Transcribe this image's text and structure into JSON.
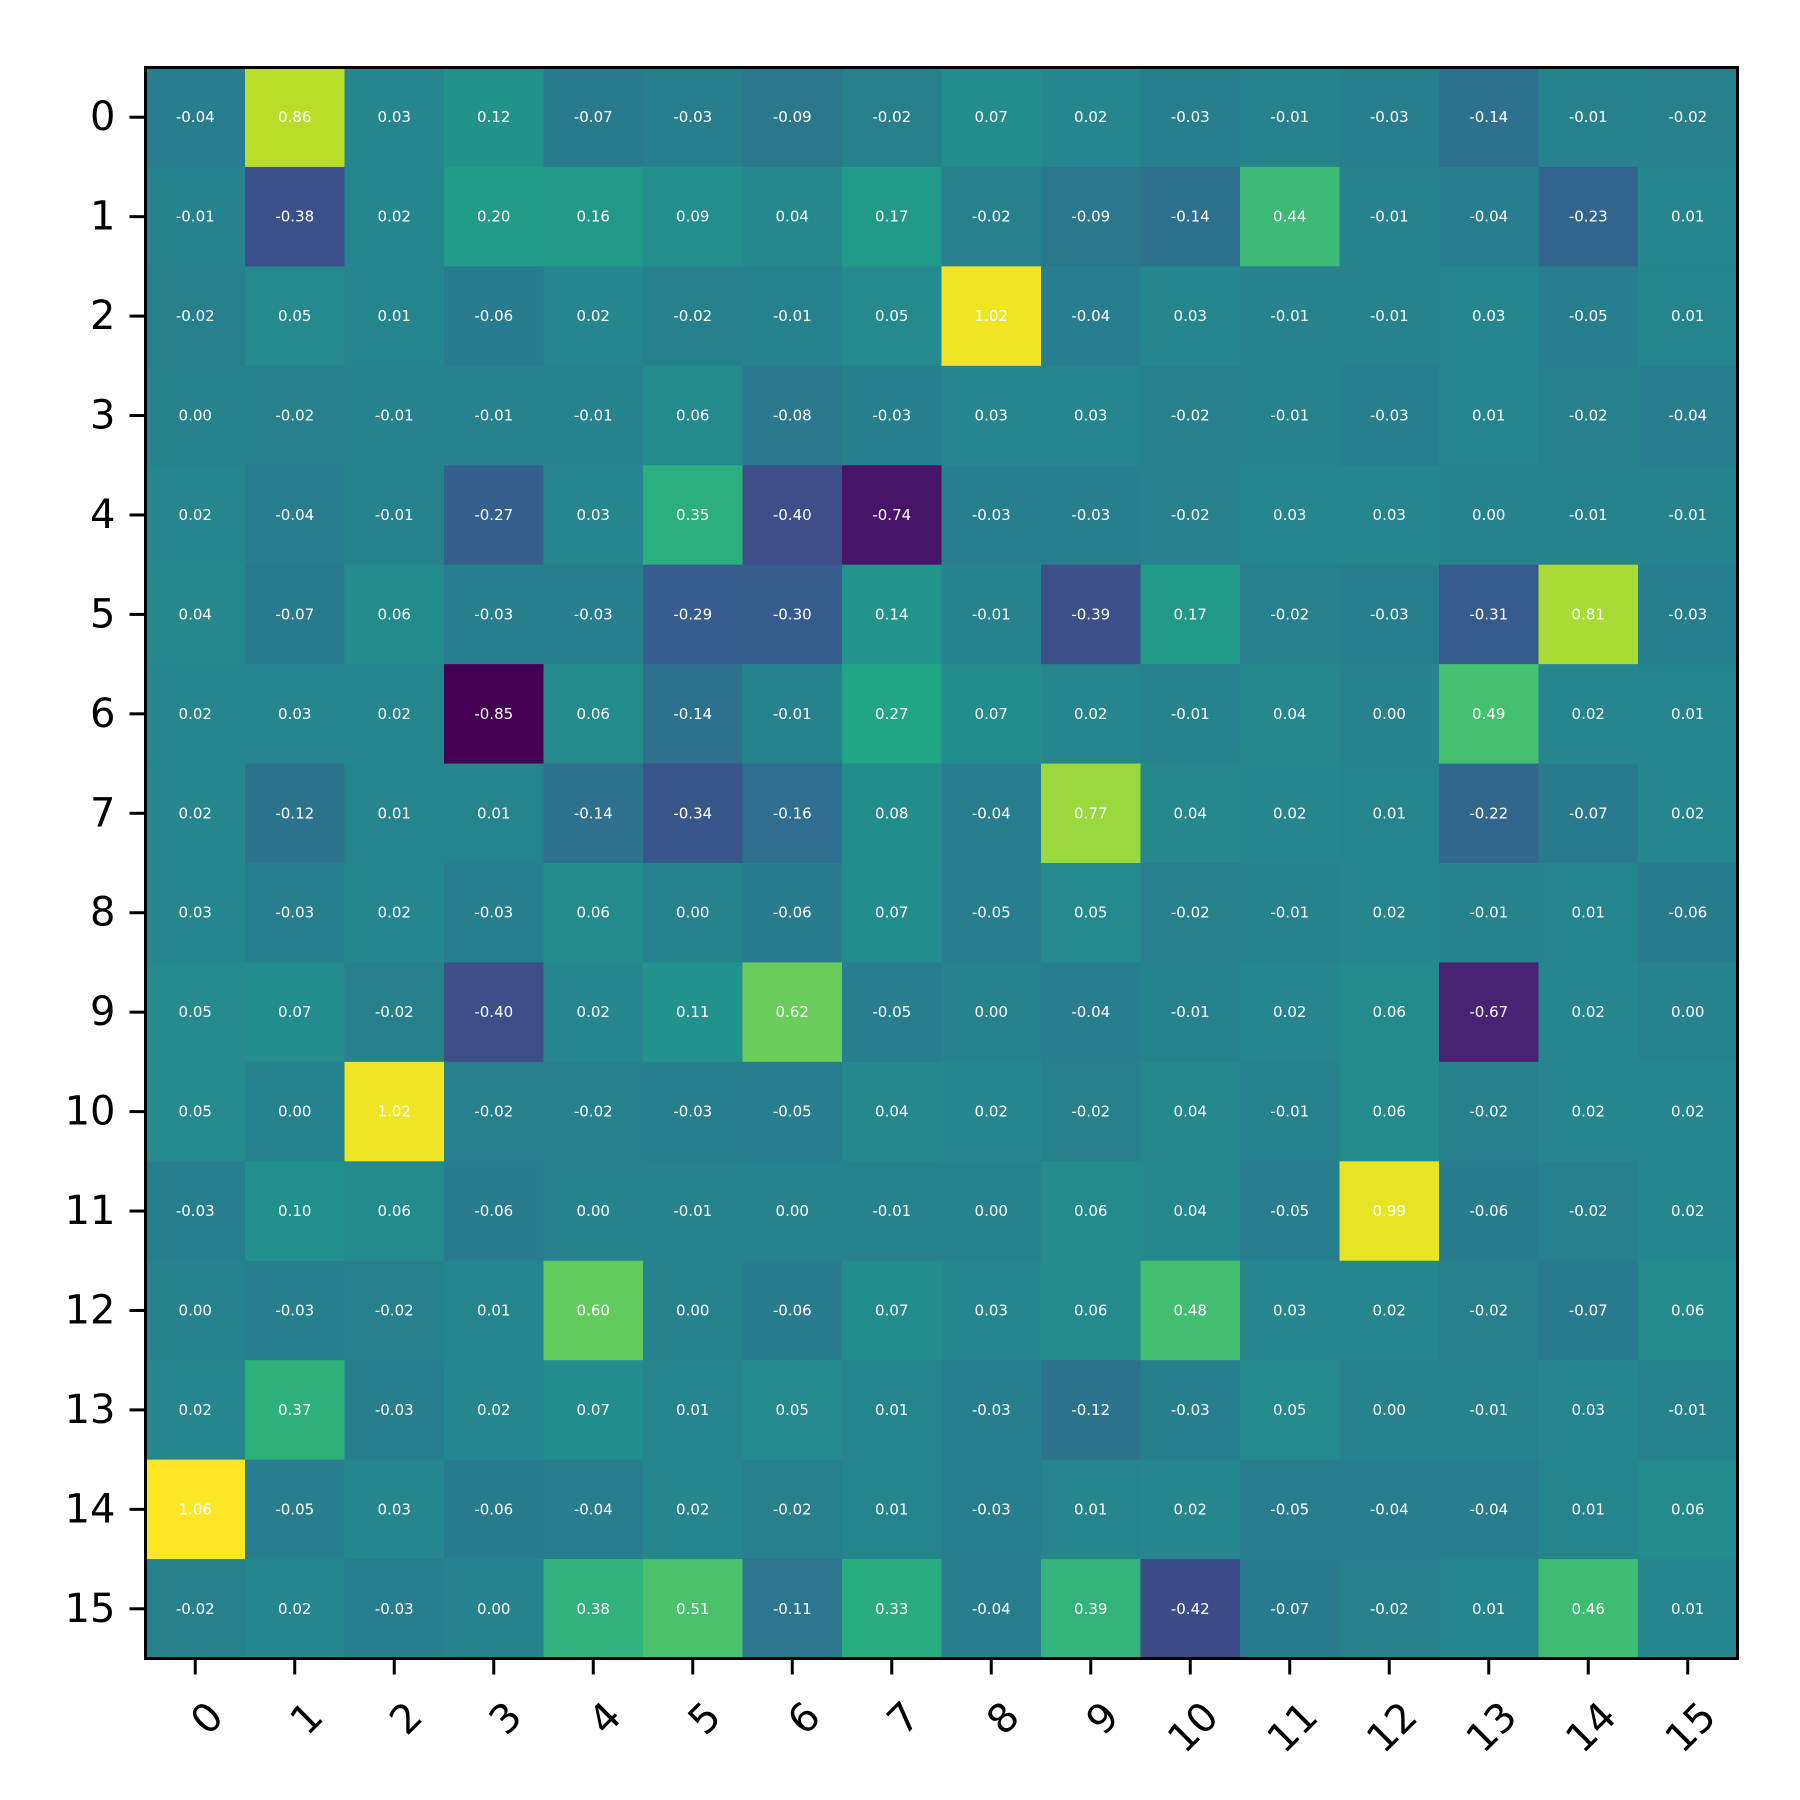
{
  "chart_data": {
    "type": "heatmap",
    "title": "",
    "xlabel": "",
    "ylabel": "",
    "colormap": "viridis",
    "value_range": [
      -0.85,
      1.06
    ],
    "legend": "none",
    "grid": false,
    "x_tick_labels": [
      "0",
      "1",
      "2",
      "3",
      "4",
      "5",
      "6",
      "7",
      "8",
      "9",
      "10",
      "11",
      "12",
      "13",
      "14",
      "15"
    ],
    "y_tick_labels": [
      "0",
      "1",
      "2",
      "3",
      "4",
      "5",
      "6",
      "7",
      "8",
      "9",
      "10",
      "11",
      "12",
      "13",
      "14",
      "15"
    ],
    "values": [
      [
        -0.04,
        0.86,
        0.03,
        0.12,
        -0.07,
        -0.03,
        -0.09,
        -0.02,
        0.07,
        0.02,
        -0.03,
        -0.01,
        -0.03,
        -0.14,
        -0.01,
        -0.02
      ],
      [
        -0.01,
        -0.38,
        0.02,
        0.2,
        0.16,
        0.09,
        0.04,
        0.17,
        -0.02,
        -0.09,
        -0.14,
        0.44,
        -0.01,
        -0.04,
        -0.23,
        0.01
      ],
      [
        -0.02,
        0.05,
        0.01,
        -0.06,
        0.02,
        -0.02,
        -0.01,
        0.05,
        1.02,
        -0.04,
        0.03,
        -0.01,
        -0.01,
        0.03,
        -0.05,
        0.01
      ],
      [
        -0.0,
        -0.02,
        -0.01,
        -0.01,
        -0.01,
        0.06,
        -0.08,
        -0.03,
        0.03,
        0.03,
        -0.02,
        -0.01,
        -0.03,
        0.01,
        -0.02,
        -0.04
      ],
      [
        0.02,
        -0.04,
        -0.01,
        -0.27,
        0.03,
        0.35,
        -0.4,
        -0.74,
        -0.03,
        -0.03,
        -0.02,
        0.03,
        0.03,
        -0.0,
        -0.01,
        -0.01
      ],
      [
        0.04,
        -0.07,
        0.06,
        -0.03,
        -0.03,
        -0.29,
        -0.3,
        0.14,
        -0.01,
        -0.39,
        0.17,
        -0.02,
        -0.03,
        -0.31,
        0.81,
        -0.03
      ],
      [
        0.02,
        0.03,
        0.02,
        -0.85,
        0.06,
        -0.14,
        -0.01,
        0.27,
        0.07,
        0.02,
        -0.01,
        0.04,
        0.0,
        0.49,
        0.02,
        0.01
      ],
      [
        0.02,
        -0.12,
        0.01,
        0.01,
        -0.14,
        -0.34,
        -0.16,
        0.08,
        -0.04,
        0.77,
        0.04,
        0.02,
        0.01,
        -0.22,
        -0.07,
        0.02
      ],
      [
        0.03,
        -0.03,
        0.02,
        -0.03,
        0.06,
        -0.0,
        -0.06,
        0.07,
        -0.05,
        0.05,
        -0.02,
        -0.01,
        0.02,
        -0.01,
        0.01,
        -0.06
      ],
      [
        0.05,
        0.07,
        -0.02,
        -0.4,
        0.02,
        0.11,
        0.62,
        -0.05,
        0.0,
        -0.04,
        -0.01,
        0.02,
        0.06,
        -0.67,
        0.02,
        -0.0
      ],
      [
        0.05,
        -0.0,
        1.02,
        -0.02,
        -0.02,
        -0.03,
        -0.05,
        0.04,
        0.02,
        -0.02,
        0.04,
        -0.01,
        0.06,
        -0.02,
        0.02,
        0.02
      ],
      [
        -0.03,
        0.1,
        0.06,
        -0.06,
        -0.0,
        -0.01,
        -0.0,
        -0.01,
        -0.0,
        0.06,
        0.04,
        -0.05,
        0.99,
        -0.06,
        -0.02,
        0.02
      ],
      [
        -0.0,
        -0.03,
        -0.02,
        0.01,
        0.6,
        -0.0,
        -0.06,
        0.07,
        0.03,
        0.06,
        0.48,
        0.03,
        0.02,
        -0.02,
        -0.07,
        0.06
      ],
      [
        0.02,
        0.37,
        -0.03,
        0.02,
        0.07,
        0.01,
        0.05,
        0.01,
        -0.03,
        -0.12,
        -0.03,
        0.05,
        -0.0,
        -0.01,
        0.03,
        -0.01
      ],
      [
        1.06,
        -0.05,
        0.03,
        -0.06,
        -0.04,
        0.02,
        -0.02,
        0.01,
        -0.03,
        0.01,
        0.02,
        -0.05,
        -0.04,
        -0.04,
        0.01,
        0.06
      ],
      [
        -0.02,
        0.02,
        -0.03,
        0.0,
        0.38,
        0.51,
        -0.11,
        0.33,
        -0.04,
        0.39,
        -0.42,
        -0.07,
        -0.02,
        0.01,
        0.46,
        0.01
      ]
    ]
  }
}
